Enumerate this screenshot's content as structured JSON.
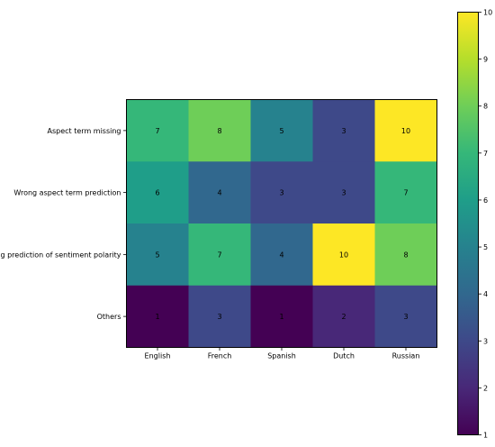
{
  "chart_data": {
    "type": "heatmap",
    "title": "",
    "xlabel": "",
    "ylabel": "",
    "columns": [
      "English",
      "French",
      "Spanish",
      "Dutch",
      "Russian"
    ],
    "rows": [
      "Aspect term missing",
      "Wrong aspect term prediction",
      "Wrong prediction of sentiment polarity",
      "Others"
    ],
    "values": [
      [
        7,
        8,
        5,
        3,
        10
      ],
      [
        6,
        4,
        3,
        3,
        7
      ],
      [
        5,
        7,
        4,
        10,
        8
      ],
      [
        1,
        3,
        1,
        2,
        3
      ]
    ],
    "cell_labels": [
      [
        "7",
        "8",
        "5",
        "3",
        "10"
      ],
      [
        "6",
        "4",
        "3",
        "3",
        "7"
      ],
      [
        "5",
        "7",
        "4",
        "10",
        "8"
      ],
      [
        "1",
        "3",
        "1",
        "2",
        "3"
      ]
    ],
    "colormap": "viridis",
    "vmin": 1,
    "vmax": 10,
    "colorbar_ticks": [
      "1",
      "2",
      "3",
      "4",
      "5",
      "6",
      "7",
      "8",
      "9",
      "10"
    ],
    "grid": false
  }
}
